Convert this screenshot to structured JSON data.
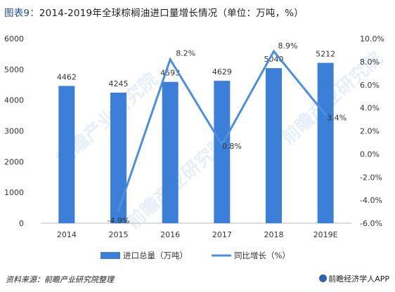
{
  "header": {
    "title_label": "图表9：",
    "title_text": "2014-2019年全球棕榈油进口量增长情况（单位：万吨，%）"
  },
  "watermark": {
    "text": "前瞻产业研究院"
  },
  "footer": {
    "source": "资料来源：前瞻产业研究院整理",
    "brand": "前瞻经济学人APP"
  },
  "colors": {
    "bar": "#3b7fd9",
    "line": "#4a8fe0",
    "axis": "#bbbbbb",
    "grid": "#e6e6e6",
    "text": "#333333",
    "brand": "#2b63b5"
  },
  "chart_data": {
    "type": "bar",
    "categories": [
      "2014",
      "2015",
      "2016",
      "2017",
      "2018",
      "2019E"
    ],
    "series": [
      {
        "name": "进口总量（万吨）",
        "type": "bar",
        "axis": "left",
        "values": [
          4462,
          4245,
          4593,
          4629,
          5040,
          5212
        ]
      },
      {
        "name": "同比增长（%）",
        "type": "line",
        "axis": "right",
        "values": [
          null,
          -4.9,
          8.2,
          0.8,
          8.9,
          3.4
        ]
      }
    ],
    "bar_labels": [
      "4462",
      "4245",
      "4593",
      "4629",
      "5040",
      "5212"
    ],
    "line_labels": [
      "",
      "-4.9%",
      "8.2%",
      "0.8%",
      "8.9%",
      "3.4%"
    ],
    "y_left": {
      "min": 0,
      "max": 6000,
      "ticks": [
        "0",
        "1000",
        "2000",
        "3000",
        "4000",
        "5000",
        "6000"
      ]
    },
    "y_right": {
      "min": -6,
      "max": 10,
      "ticks": [
        "-6.0%",
        "-4.0%",
        "-2.0%",
        "0.0%",
        "2.0%",
        "4.0%",
        "6.0%",
        "8.0%",
        "10.0%"
      ]
    },
    "grid": false,
    "legend_position": "bottom"
  }
}
